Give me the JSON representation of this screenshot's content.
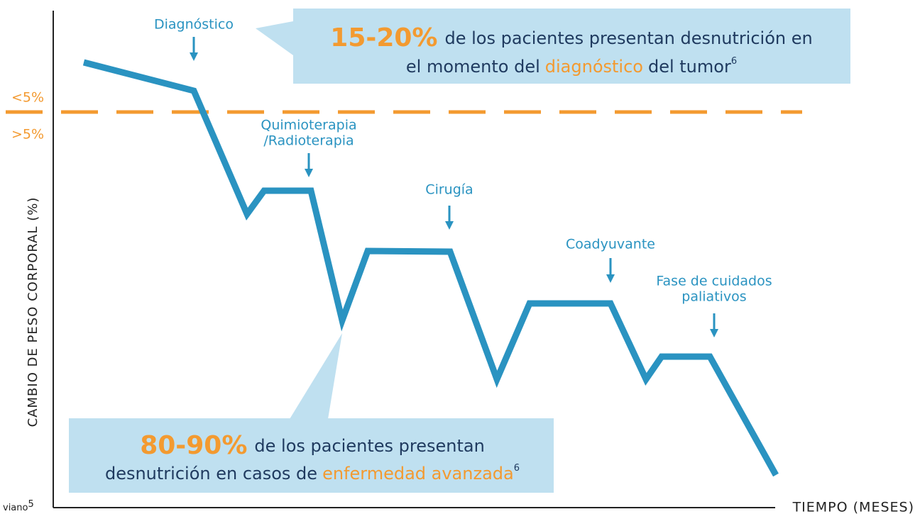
{
  "axes": {
    "y_label": "CAMBIO DE PESO CORPORAL (%)",
    "x_label": "TIEMPO (MESES)"
  },
  "thresholds": {
    "above": "<5%",
    "below": ">5%"
  },
  "phases": [
    {
      "lines": [
        "Diagnóstico"
      ]
    },
    {
      "lines": [
        "Quimioterapia",
        "/Radioterapia"
      ]
    },
    {
      "lines": [
        "Cirugía"
      ]
    },
    {
      "lines": [
        "Coadyuvante"
      ]
    },
    {
      "lines": [
        "Fase de cuidados",
        "paliativos"
      ]
    }
  ],
  "callouts": [
    {
      "percent": "15-20%",
      "line1": "de los pacientes presentan desnutrición en",
      "line2_before": "el momento del",
      "highlight": "diagnóstico",
      "line2_after": "del tumor",
      "note": "6"
    },
    {
      "percent": "80-90%",
      "line1": "de los pacientes presentan",
      "line2_before": "desnutrición en casos de",
      "highlight": "enfermedad avanzada",
      "line2_after": "",
      "note": "6"
    }
  ],
  "footnote": {
    "text": "viano",
    "note": "5"
  }
}
